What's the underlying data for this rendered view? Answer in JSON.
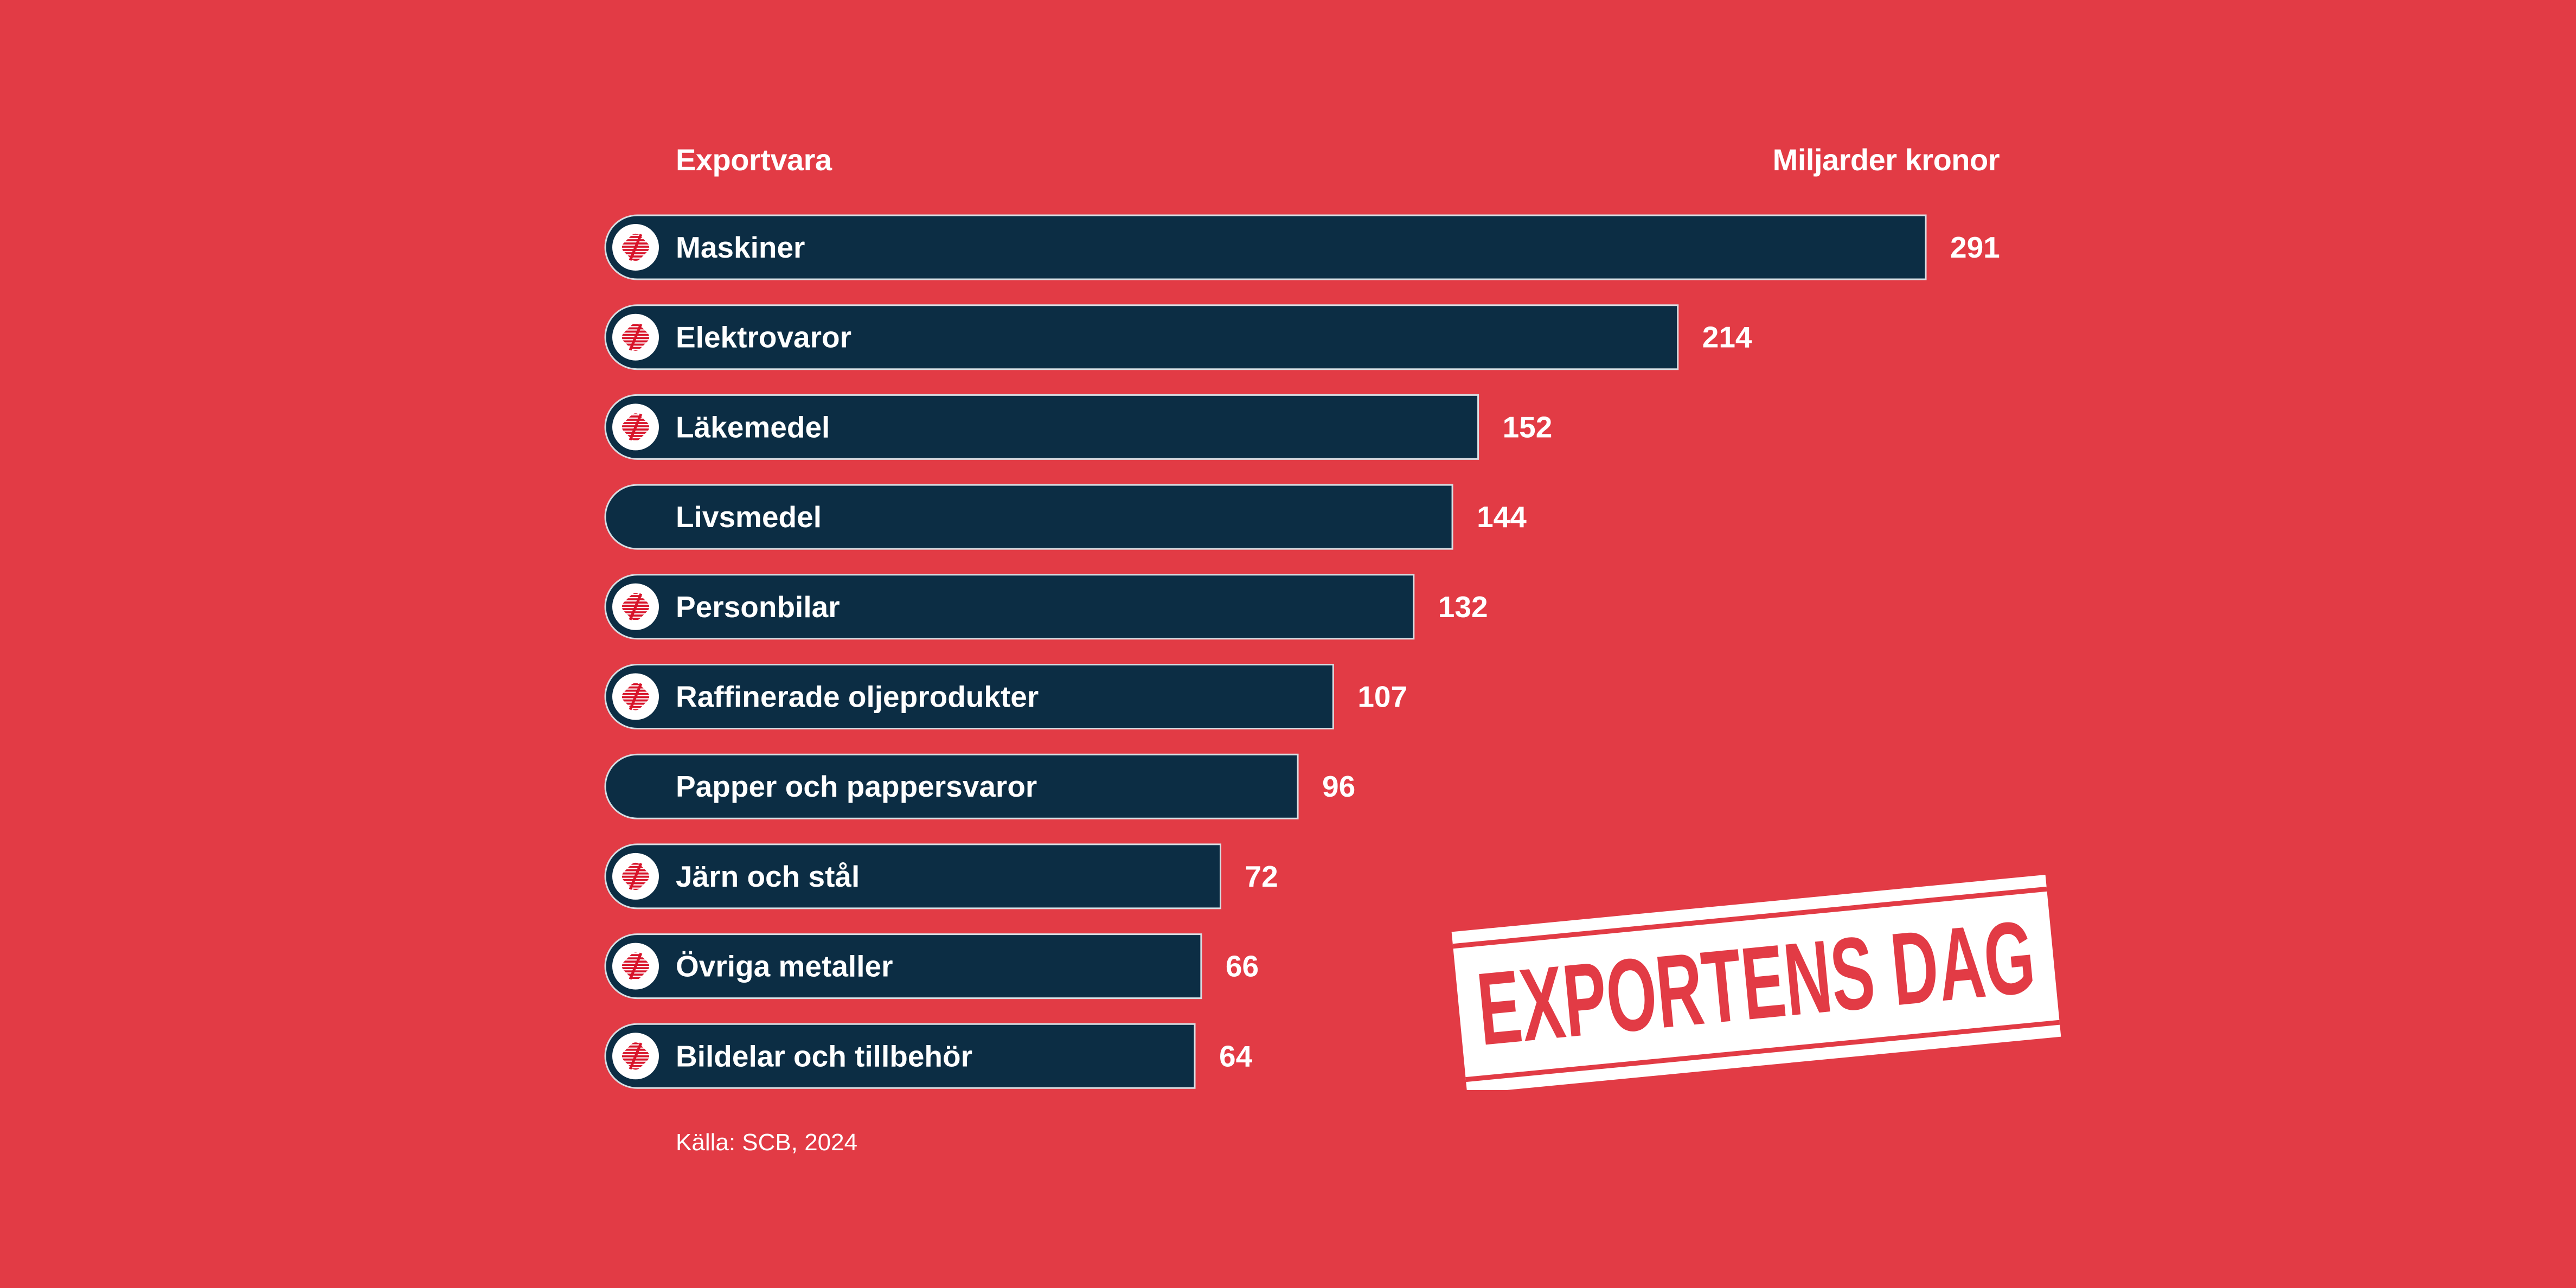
{
  "colors": {
    "background": "#E23B45",
    "bar": "#0C2D44",
    "bar_outline": "#D8DDE2",
    "icon_red": "#D8142A",
    "text": "#FFFFFF"
  },
  "chart_data": {
    "type": "bar",
    "orientation": "horizontal",
    "column_headers": {
      "category": "Exportvara",
      "value": "Miljarder kronor"
    },
    "categories": [
      "Maskiner",
      "Elektrovaror",
      "Läkemedel",
      "Livsmedel",
      "Personbilar",
      "Raffinerade oljeprodukter",
      "Papper och pappersvaror",
      "Järn och stål",
      "Övriga metaller",
      "Bildelar och tillbehör"
    ],
    "values": [
      291,
      214,
      152,
      144,
      132,
      107,
      96,
      72,
      66,
      64
    ],
    "value_labels": [
      "291",
      "214",
      "152",
      "144",
      "132",
      "107",
      "96",
      "72",
      "66",
      "64"
    ],
    "has_icon": [
      true,
      true,
      true,
      false,
      true,
      true,
      false,
      true,
      true,
      true
    ],
    "icon": "company-logo-icon",
    "source": "Källa: SCB, 2024",
    "legend": "none",
    "grid": false
  },
  "stamp": {
    "text": "EXPORTENS DAG"
  }
}
